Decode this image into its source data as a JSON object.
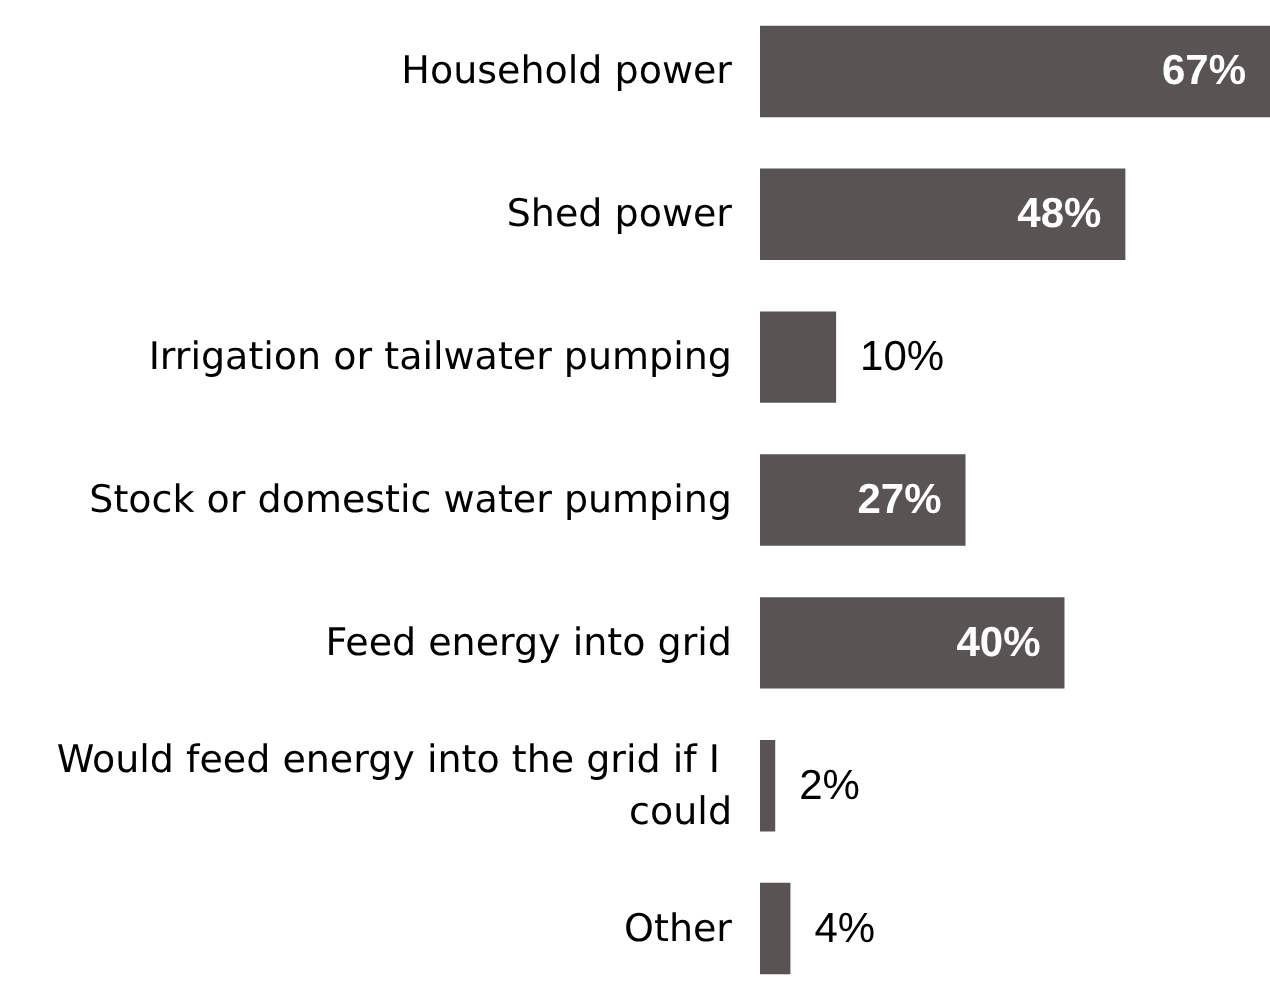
{
  "chart_data": {
    "type": "bar",
    "orientation": "horizontal",
    "categories": [
      "Household power",
      "Shed power",
      "Irrigation or tailwater pumping",
      "Stock or domestic water pumping",
      "Feed energy into grid",
      "Would feed energy into the grid if I could",
      "Other"
    ],
    "values": [
      67,
      48,
      10,
      27,
      40,
      2,
      4
    ],
    "value_labels": [
      "67%",
      "48%",
      "10%",
      "27%",
      "40%",
      "2%",
      "4%"
    ],
    "color": "#595354"
  }
}
